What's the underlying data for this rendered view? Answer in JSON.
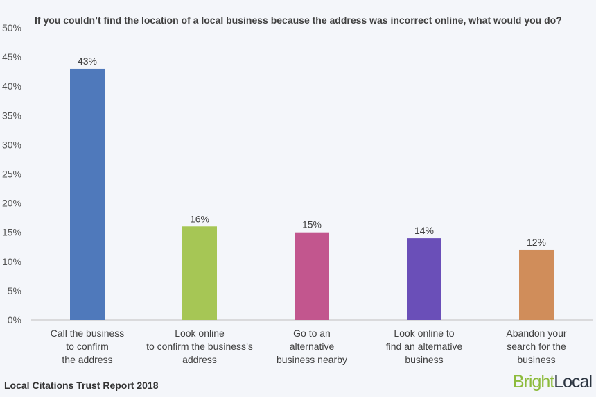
{
  "chart_data": {
    "type": "bar",
    "title": "If you couldn’t find the location of a local business because the address was incorrect online, what would you do?",
    "categories": [
      [
        "Call the business",
        "to confirm",
        "the address"
      ],
      [
        "Look online",
        "to confirm the business’s",
        "address"
      ],
      [
        "Go to an",
        "alternative",
        "business nearby"
      ],
      [
        "Look online to",
        "find an alternative",
        "business"
      ],
      [
        "Abandon your",
        "search for the",
        "business"
      ]
    ],
    "values": [
      43,
      16,
      15,
      14,
      12
    ],
    "data_labels": [
      "43%",
      "16%",
      "15%",
      "14%",
      "12%"
    ],
    "colors": [
      "#4f79bb",
      "#a6c655",
      "#c2568e",
      "#6a4fb8",
      "#d08d5a"
    ],
    "ylim": [
      0,
      50
    ],
    "yticks": [
      0,
      5,
      10,
      15,
      20,
      25,
      30,
      35,
      40,
      45,
      50
    ],
    "ytick_labels": [
      "0%",
      "5%",
      "10%",
      "15%",
      "20%",
      "25%",
      "30%",
      "35%",
      "40%",
      "45%",
      "50%"
    ],
    "xlabel": "",
    "ylabel": "",
    "grid": false,
    "legend": "none"
  },
  "footer": {
    "source": "Local Citations Trust Report 2018"
  },
  "logo": {
    "part1": "Bright",
    "part2": "Local"
  }
}
